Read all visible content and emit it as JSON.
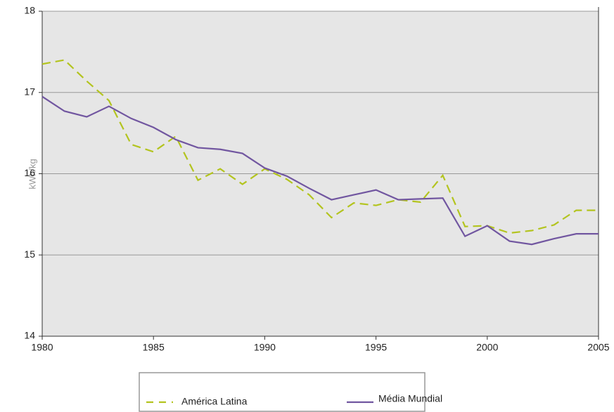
{
  "chart_data": {
    "type": "line",
    "y_label": "kWh/kg",
    "x": [
      1980,
      1981,
      1982,
      1983,
      1984,
      1985,
      1986,
      1987,
      1988,
      1989,
      1990,
      1991,
      1992,
      1993,
      1994,
      1995,
      1996,
      1997,
      1998,
      1999,
      2000,
      2001,
      2002,
      2003,
      2004,
      2005
    ],
    "series": [
      {
        "name": "América Latina",
        "color": "#b3c41f",
        "dash": true,
        "values": [
          17.35,
          17.4,
          17.14,
          16.9,
          16.36,
          16.27,
          16.46,
          15.92,
          16.06,
          15.87,
          16.06,
          15.93,
          15.74,
          15.46,
          15.64,
          15.61,
          15.68,
          15.65,
          15.98,
          15.35,
          15.36,
          15.27,
          15.3,
          15.37,
          15.55,
          15.55
        ]
      },
      {
        "name": "Média Mundial",
        "color": "#7156a0",
        "dash": false,
        "values": [
          16.95,
          16.77,
          16.7,
          16.83,
          16.68,
          16.57,
          16.42,
          16.32,
          16.3,
          16.25,
          16.07,
          15.97,
          15.82,
          15.68,
          15.74,
          15.8,
          15.68,
          15.69,
          15.7,
          15.23,
          15.36,
          15.17,
          15.13,
          15.2,
          15.26,
          15.26
        ]
      }
    ],
    "xlim": [
      1980,
      2005
    ],
    "xticks": [
      1980,
      1985,
      1990,
      1995,
      2000,
      2005
    ],
    "ylim": [
      14,
      18
    ],
    "yticks": [
      14,
      15,
      16,
      17,
      18
    ],
    "grid": true,
    "legend": "bottom"
  }
}
